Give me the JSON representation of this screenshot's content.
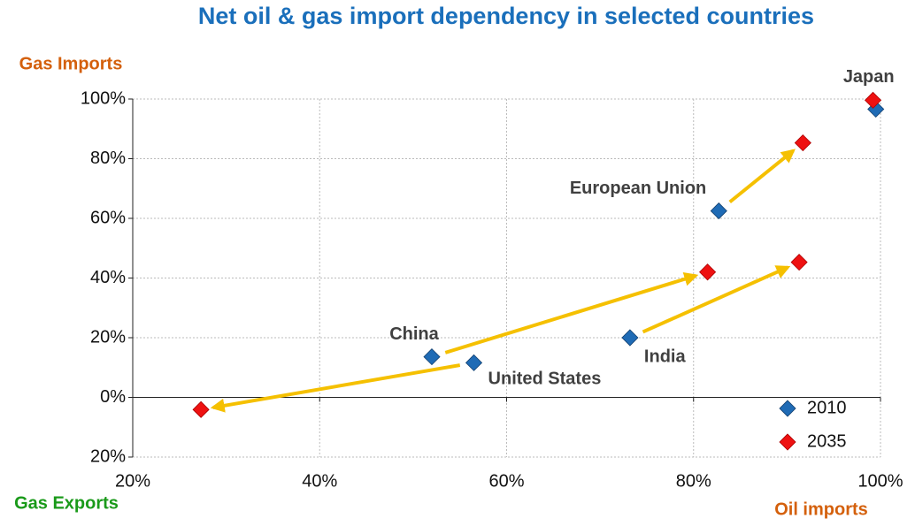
{
  "chart_data": {
    "type": "scatter",
    "title": "Net oil & gas import dependency in selected countries",
    "y_label_top": "Gas Imports",
    "y_label_bottom": "Gas Exports",
    "x_label": "Oil imports",
    "countries": [
      "China",
      "United States",
      "India",
      "European Union",
      "Japan"
    ],
    "series": [
      {
        "name": "2010",
        "color": "#1f6bb5",
        "x": [
          52,
          56.5,
          73.2,
          82.7,
          99.5
        ],
        "values": [
          13.6,
          11.6,
          20,
          62.5,
          96.6
        ]
      },
      {
        "name": "2035",
        "color": "#ee1111",
        "x": [
          81.5,
          27.3,
          91.3,
          91.7,
          99.2
        ],
        "values": [
          42,
          -4.1,
          45.3,
          85.3,
          99.6
        ]
      }
    ],
    "xlim": [
      20,
      100
    ],
    "ylim": [
      -20,
      100
    ],
    "xticks": [
      {
        "value": 20,
        "label": "20%"
      },
      {
        "value": 40,
        "label": "40%"
      },
      {
        "value": 60,
        "label": "60%"
      },
      {
        "value": 80,
        "label": "80%"
      },
      {
        "value": 100,
        "label": "100%"
      }
    ],
    "yticks": [
      {
        "value": -20,
        "label": "20%"
      },
      {
        "value": 0,
        "label": "0%"
      },
      {
        "value": 20,
        "label": "20%"
      },
      {
        "value": 40,
        "label": "40%"
      },
      {
        "value": 60,
        "label": "60%"
      },
      {
        "value": 80,
        "label": "80%"
      },
      {
        "value": 100,
        "label": "100%"
      }
    ],
    "grid": true,
    "legend": "lower right",
    "arrow_color": "#f5c000"
  }
}
